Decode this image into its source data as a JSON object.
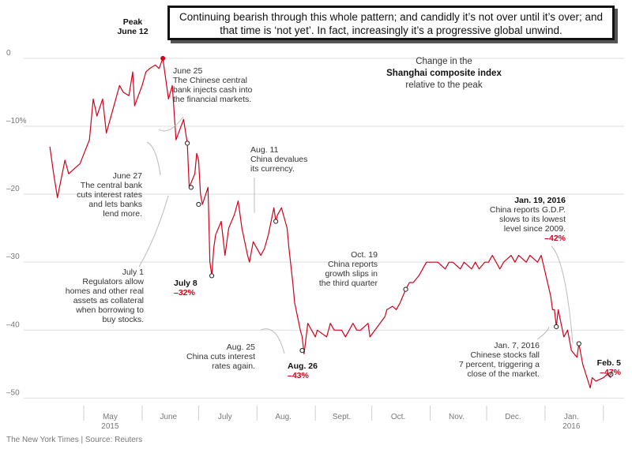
{
  "callout_text": "Continuing bearish through this whole pattern; and candidly it’s not over until it’s over; and that time is ‘not yet’. In fact, increasingly it’s a progressive global unwind.",
  "source": "The New York Times | Source: Reuters",
  "colors": {
    "line": "#d0021b",
    "accent": "#d0021b",
    "grid": "#dddddd",
    "text": "#333333"
  },
  "chart_data": {
    "type": "line",
    "title": [
      "Change in the",
      "Shanghai composite index",
      "relative to the peak"
    ],
    "ylabel": "",
    "ylim": [
      -51,
      3
    ],
    "yticks": [
      {
        "value": 0,
        "label": "0"
      },
      {
        "value": -10,
        "label": "–10%"
      },
      {
        "value": -20,
        "label": "–20"
      },
      {
        "value": -30,
        "label": "–30"
      },
      {
        "value": -40,
        "label": "–40"
      },
      {
        "value": -50,
        "label": "–50"
      }
    ],
    "xlim": [
      "2015-04-10",
      "2016-02-12"
    ],
    "xticks": [
      {
        "date": "2015-05-15",
        "label": "May",
        "sub": "2015"
      },
      {
        "date": "2015-06-15",
        "label": "June",
        "sub": ""
      },
      {
        "date": "2015-07-15",
        "label": "July",
        "sub": ""
      },
      {
        "date": "2015-08-15",
        "label": "Aug.",
        "sub": ""
      },
      {
        "date": "2015-09-15",
        "label": "Sept.",
        "sub": ""
      },
      {
        "date": "2015-10-15",
        "label": "Oct.",
        "sub": ""
      },
      {
        "date": "2015-11-15",
        "label": "Nov.",
        "sub": ""
      },
      {
        "date": "2015-12-15",
        "label": "Dec.",
        "sub": ""
      },
      {
        "date": "2016-01-15",
        "label": "Jan.",
        "sub": "2016"
      }
    ],
    "month_boundaries": [
      "2015-05-01",
      "2015-06-01",
      "2015-07-01",
      "2015-08-01",
      "2015-09-01",
      "2015-10-01",
      "2015-11-01",
      "2015-12-01",
      "2016-01-01",
      "2016-02-01"
    ],
    "series": [
      {
        "x": [
          "2015-04-13",
          "2015-04-15",
          "2015-04-17",
          "2015-04-21",
          "2015-04-23",
          "2015-04-27",
          "2015-04-29",
          "2015-05-04",
          "2015-05-06",
          "2015-05-08",
          "2015-05-11",
          "2015-05-13",
          "2015-05-15",
          "2015-05-18",
          "2015-05-20",
          "2015-05-22",
          "2015-05-25",
          "2015-05-27",
          "2015-05-28",
          "2015-06-01",
          "2015-06-03",
          "2015-06-05",
          "2015-06-08",
          "2015-06-10",
          "2015-06-12",
          "2015-06-15",
          "2015-06-17",
          "2015-06-19",
          "2015-06-23",
          "2015-06-25",
          "2015-06-26",
          "2015-06-29",
          "2015-06-30",
          "2015-07-01",
          "2015-07-02",
          "2015-07-03",
          "2015-07-06",
          "2015-07-07",
          "2015-07-08",
          "2015-07-09",
          "2015-07-10",
          "2015-07-13",
          "2015-07-15",
          "2015-07-17",
          "2015-07-20",
          "2015-07-22",
          "2015-07-24",
          "2015-07-27",
          "2015-07-28",
          "2015-07-30",
          "2015-08-03",
          "2015-08-05",
          "2015-08-07",
          "2015-08-10",
          "2015-08-11",
          "2015-08-12",
          "2015-08-14",
          "2015-08-17",
          "2015-08-18",
          "2015-08-20",
          "2015-08-21",
          "2015-08-24",
          "2015-08-25",
          "2015-08-26",
          "2015-08-28",
          "2015-09-01",
          "2015-09-02",
          "2015-09-07",
          "2015-09-09",
          "2015-09-11",
          "2015-09-15",
          "2015-09-17",
          "2015-09-21",
          "2015-09-23",
          "2015-09-25",
          "2015-09-29",
          "2015-09-30",
          "2015-10-08",
          "2015-10-09",
          "2015-10-12",
          "2015-10-14",
          "2015-10-16",
          "2015-10-19",
          "2015-10-21",
          "2015-10-23",
          "2015-10-26",
          "2015-10-28",
          "2015-10-30",
          "2015-11-03",
          "2015-11-05",
          "2015-11-09",
          "2015-11-11",
          "2015-11-13",
          "2015-11-17",
          "2015-11-19",
          "2015-11-23",
          "2015-11-25",
          "2015-11-27",
          "2015-11-30",
          "2015-12-02",
          "2015-12-04",
          "2015-12-08",
          "2015-12-10",
          "2015-12-14",
          "2015-12-16",
          "2015-12-18",
          "2015-12-22",
          "2015-12-24",
          "2015-12-28",
          "2015-12-30",
          "2016-01-04",
          "2016-01-05",
          "2016-01-06",
          "2016-01-07",
          "2016-01-08",
          "2016-01-11",
          "2016-01-13",
          "2016-01-15",
          "2016-01-18",
          "2016-01-19",
          "2016-01-21",
          "2016-01-25",
          "2016-01-26",
          "2016-01-28",
          "2016-02-01",
          "2016-02-03",
          "2016-02-05"
        ],
        "values": [
          -13,
          -17,
          -20.5,
          -15,
          -17,
          -16,
          -15.5,
          -12,
          -6,
          -8.5,
          -6,
          -11,
          -9,
          -6,
          -4,
          -5,
          -5.5,
          -2,
          -7,
          -4,
          -2,
          -1.5,
          -1,
          -1.5,
          0,
          -6,
          -4,
          -12,
          -9,
          -12.5,
          -19,
          -17,
          -14,
          -15,
          -20,
          -21.5,
          -19,
          -30,
          -32,
          -28,
          -26,
          -24,
          -29,
          -25,
          -23,
          -21,
          -25,
          -29,
          -30,
          -27,
          -29,
          -28,
          -26,
          -22,
          -24,
          -23,
          -22,
          -25,
          -28,
          -33,
          -36,
          -40,
          -41,
          -43.5,
          -39,
          -41,
          -40,
          -41,
          -39,
          -40,
          -40,
          -41,
          -39,
          -40,
          -40,
          -39,
          -41,
          -38,
          -37,
          -36.5,
          -37,
          -36,
          -34,
          -33,
          -33,
          -32,
          -31,
          -30,
          -30,
          -30,
          -31,
          -30,
          -30,
          -31,
          -30,
          -31,
          -30,
          -31,
          -30,
          -30,
          -29,
          -31,
          -30,
          -29,
          -30,
          -29,
          -30,
          -29,
          -30,
          -29,
          -35,
          -37,
          -37,
          -39.5,
          -37,
          -41,
          -40,
          -43,
          -44,
          -42,
          -45,
          -48.5,
          -47,
          -47.5,
          -47,
          -46.5,
          -47
        ]
      }
    ],
    "markers": [
      {
        "date": "2015-06-12",
        "value": 0,
        "filled": true
      },
      {
        "date": "2015-06-25",
        "value": -12.5,
        "filled": false
      },
      {
        "date": "2015-06-27",
        "value": -19,
        "filled": false
      },
      {
        "date": "2015-07-01",
        "value": -21.5,
        "filled": false
      },
      {
        "date": "2015-07-08",
        "value": -32,
        "filled": false
      },
      {
        "date": "2015-08-11",
        "value": -24,
        "filled": false
      },
      {
        "date": "2015-08-25",
        "value": -43,
        "filled": false
      },
      {
        "date": "2015-10-19",
        "value": -34,
        "filled": false
      },
      {
        "date": "2016-01-07",
        "value": -39.5,
        "filled": false
      },
      {
        "date": "2016-01-19",
        "value": -42,
        "filled": false
      },
      {
        "date": "2016-02-05",
        "value": -46.5,
        "filled": false
      }
    ],
    "annotations": [
      {
        "id": "peak",
        "lines": [
          {
            "t": "Peak",
            "s": "b"
          },
          {
            "t": "June 12",
            "s": "b"
          }
        ]
      },
      {
        "id": "jun25",
        "lines": [
          {
            "t": "June 25",
            "s": "n"
          },
          {
            "t": "The Chinese central",
            "s": "n"
          },
          {
            "t": "bank injects cash into",
            "s": "n"
          },
          {
            "t": "the financial markets.",
            "s": "n"
          }
        ]
      },
      {
        "id": "jun27",
        "lines": [
          {
            "t": "June 27",
            "s": "n"
          },
          {
            "t": "The central bank",
            "s": "n"
          },
          {
            "t": "cuts interest rates",
            "s": "n"
          },
          {
            "t": "and lets banks",
            "s": "n"
          },
          {
            "t": "lend more.",
            "s": "n"
          }
        ]
      },
      {
        "id": "jul1",
        "lines": [
          {
            "t": "July 1",
            "s": "n"
          },
          {
            "t": "Regulators allow",
            "s": "n"
          },
          {
            "t": "homes and other real",
            "s": "n"
          },
          {
            "t": "assets as collateral",
            "s": "n"
          },
          {
            "t": "when borrowing to",
            "s": "n"
          },
          {
            "t": "buy stocks.",
            "s": "n"
          }
        ]
      },
      {
        "id": "jul8",
        "lines": [
          {
            "t": "July 8",
            "s": "b"
          },
          {
            "t": "–32%",
            "s": "r"
          }
        ]
      },
      {
        "id": "aug11",
        "lines": [
          {
            "t": "Aug. 11",
            "s": "n"
          },
          {
            "t": "China devalues",
            "s": "n"
          },
          {
            "t": "its currency.",
            "s": "n"
          }
        ]
      },
      {
        "id": "aug25",
        "lines": [
          {
            "t": "Aug. 25",
            "s": "n"
          },
          {
            "t": "China cuts interest",
            "s": "n"
          },
          {
            "t": "rates again.",
            "s": "n"
          }
        ]
      },
      {
        "id": "aug26",
        "lines": [
          {
            "t": "Aug. 26",
            "s": "b"
          },
          {
            "t": "–43%",
            "s": "r"
          }
        ]
      },
      {
        "id": "oct19",
        "lines": [
          {
            "t": "Oct. 19",
            "s": "n"
          },
          {
            "t": "China reports",
            "s": "n"
          },
          {
            "t": "growth slips in",
            "s": "n"
          },
          {
            "t": "the third quarter",
            "s": "n"
          }
        ]
      },
      {
        "id": "jan19",
        "lines": [
          {
            "t": "Jan. 19, 2016",
            "s": "b"
          },
          {
            "t": "China reports G.D.P.",
            "s": "n"
          },
          {
            "t": "slows to its lowest",
            "s": "n"
          },
          {
            "t": "level since 2009.",
            "s": "n"
          },
          {
            "t": "–42%",
            "s": "r"
          }
        ]
      },
      {
        "id": "jan7",
        "lines": [
          {
            "t": "Jan. 7, 2016",
            "s": "n"
          },
          {
            "t": "Chinese stocks fall",
            "s": "n"
          },
          {
            "t": "7 percent, triggering a",
            "s": "n"
          },
          {
            "t": "close of the market.",
            "s": "n"
          }
        ]
      },
      {
        "id": "feb5",
        "lines": [
          {
            "t": "Feb. 5",
            "s": "b"
          },
          {
            "t": "–47%",
            "s": "r"
          }
        ]
      }
    ]
  }
}
